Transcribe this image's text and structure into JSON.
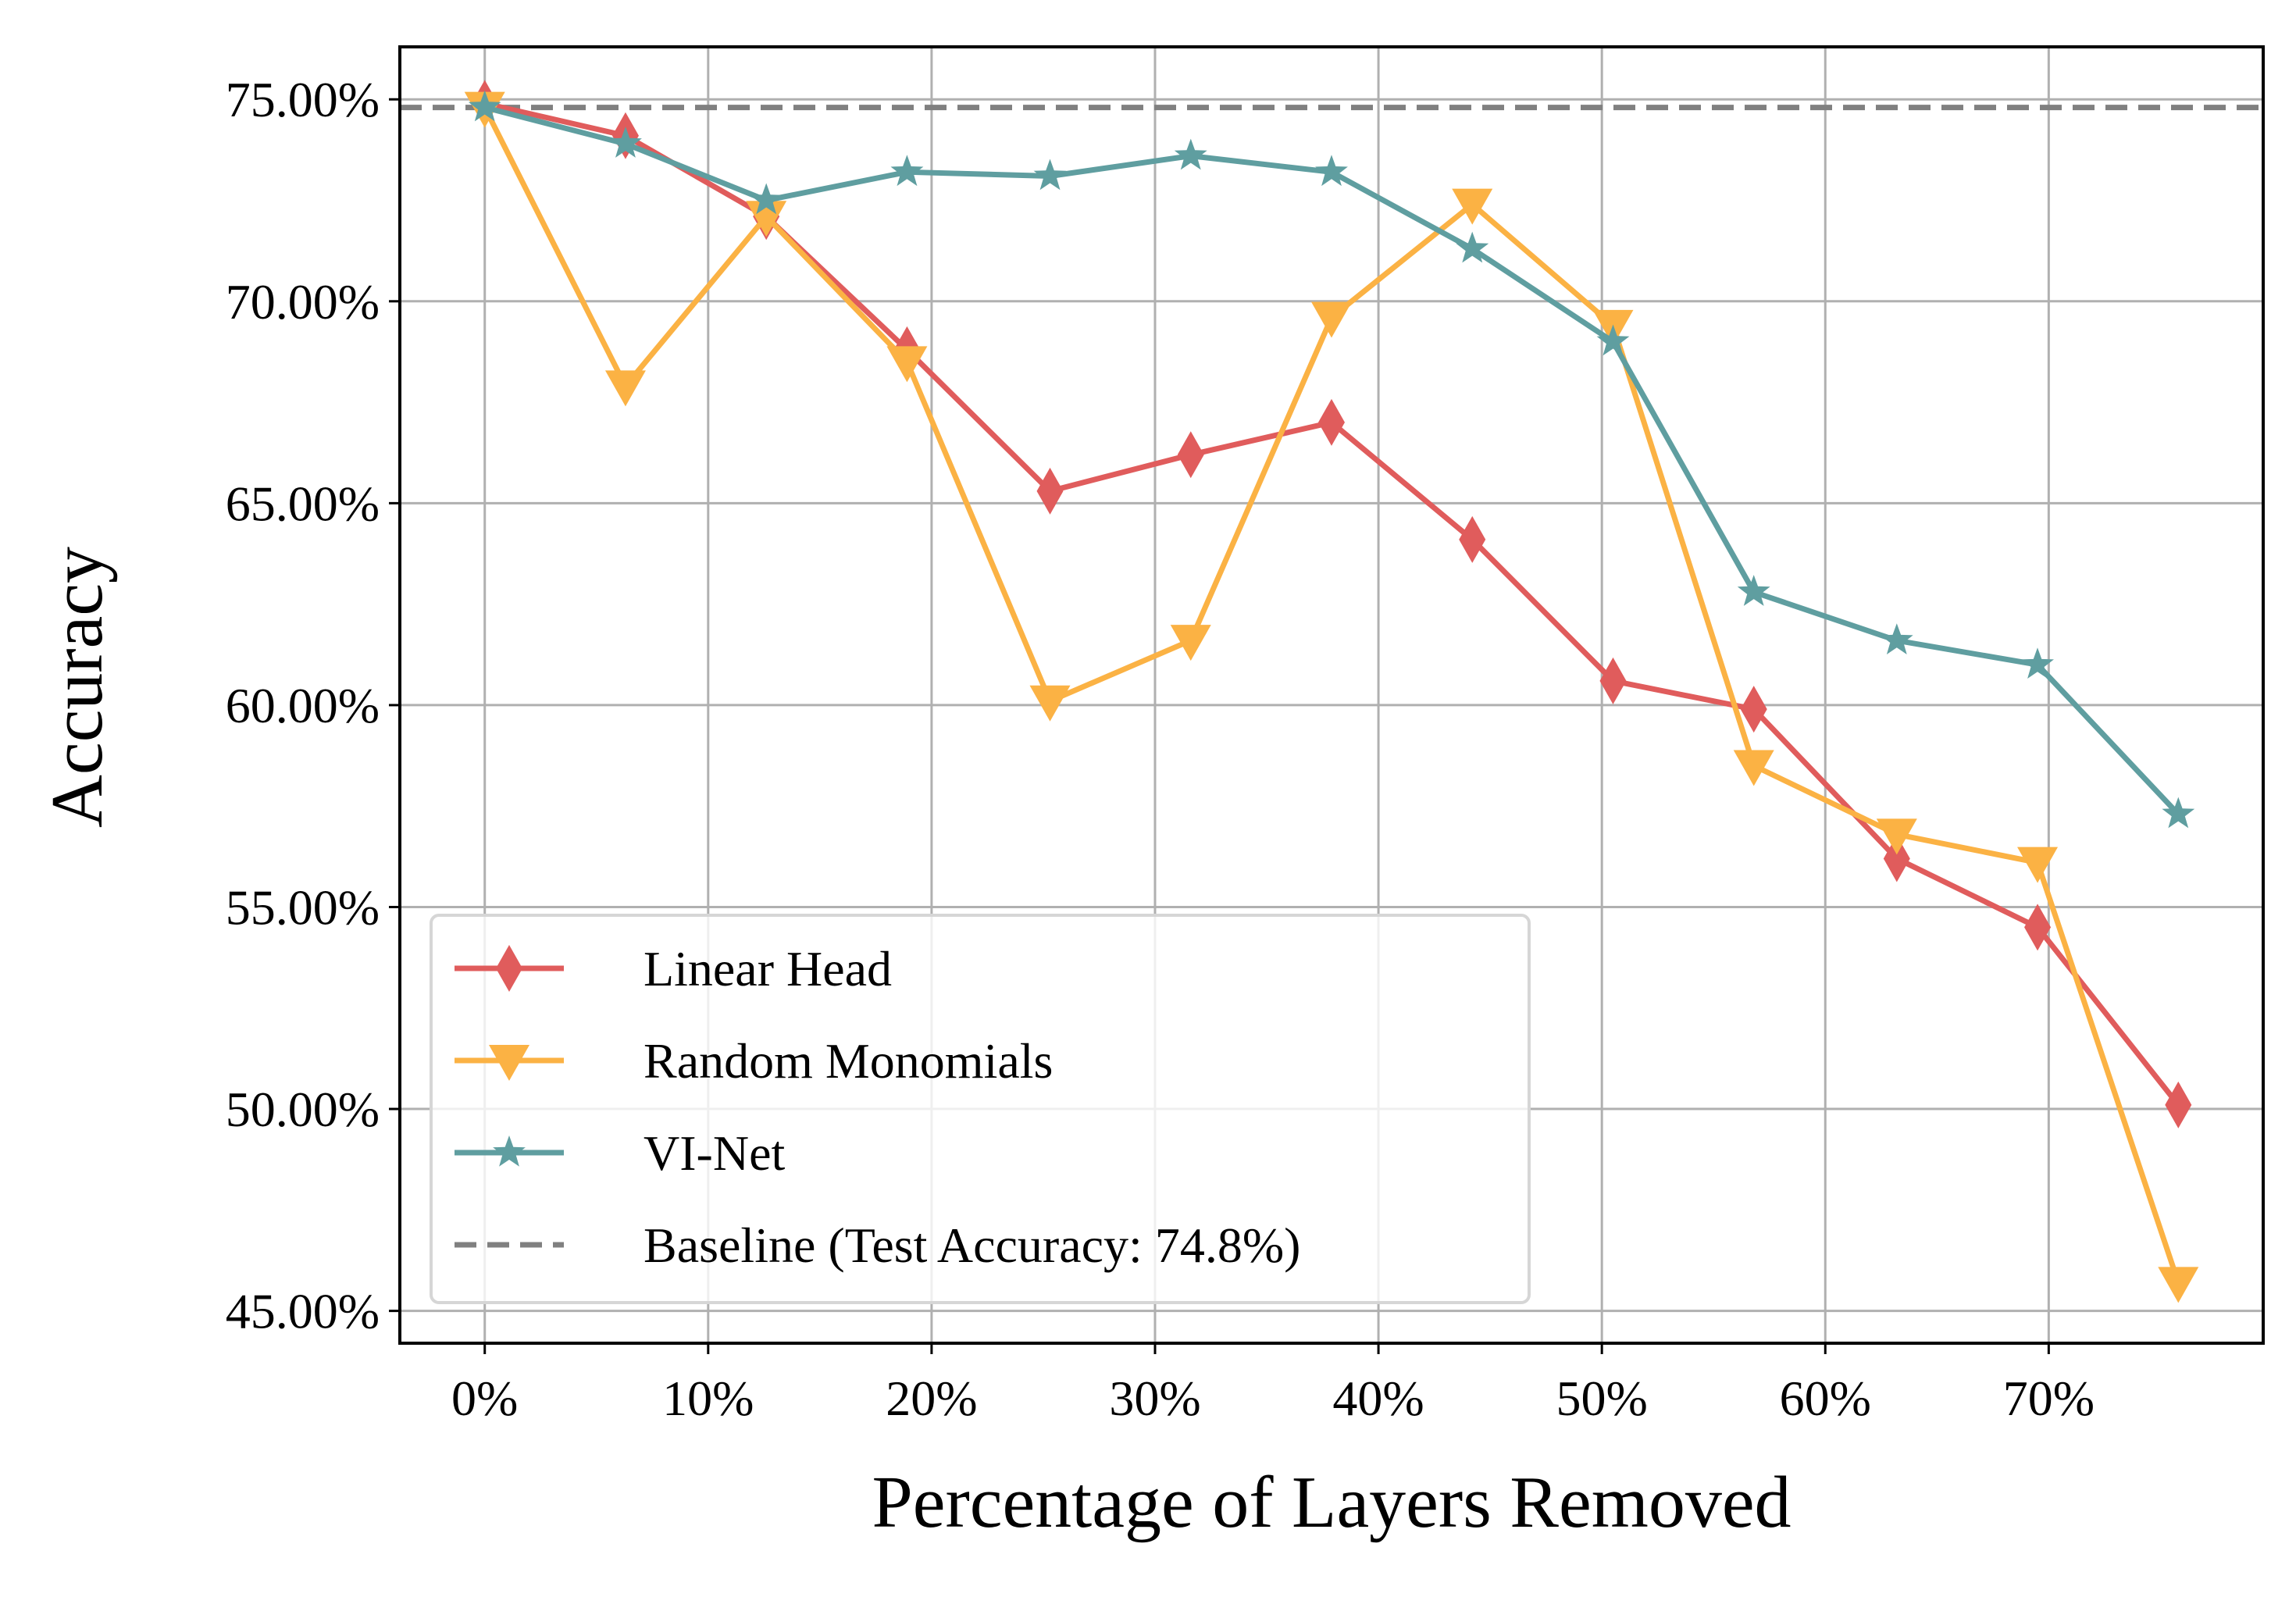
{
  "chart_data": {
    "type": "line",
    "xlabel": "Percentage of Layers Removed",
    "ylabel": "Accuracy",
    "xlim": [
      -3.8,
      79.6
    ],
    "ylim": [
      44.2,
      76.3
    ],
    "x_ticks": [
      0,
      10,
      20,
      30,
      40,
      50,
      60,
      70
    ],
    "x_tick_labels": [
      "0%",
      "10%",
      "20%",
      "30%",
      "40%",
      "50%",
      "60%",
      "70%"
    ],
    "y_ticks": [
      45,
      50,
      55,
      60,
      65,
      70,
      75
    ],
    "y_tick_labels": [
      "45.00%",
      "50.00%",
      "55.00%",
      "60.00%",
      "65.00%",
      "70.00%",
      "75.00%"
    ],
    "grid": true,
    "legend_position": "lower-left",
    "x": [
      0,
      6.3,
      12.6,
      18.9,
      25.3,
      31.6,
      37.9,
      44.2,
      50.5,
      56.8,
      63.2,
      69.5,
      75.8
    ],
    "series": [
      {
        "name": "Linear Head",
        "color": "#e05c5c",
        "marker": "diamond",
        "values": [
          74.9,
          74.1,
          72.1,
          68.8,
          65.3,
          66.2,
          67.0,
          64.1,
          60.6,
          59.9,
          56.2,
          54.5,
          50.1
        ]
      },
      {
        "name": "Random Monomials",
        "color": "#fbb244",
        "marker": "triangle-down",
        "values": [
          74.8,
          67.9,
          72.1,
          68.5,
          60.1,
          61.6,
          69.6,
          72.4,
          69.4,
          58.5,
          56.8,
          56.1,
          45.7
        ]
      },
      {
        "name": "VI-Net",
        "color": "#5f9ea0",
        "marker": "star",
        "values": [
          74.8,
          73.9,
          72.5,
          73.2,
          73.1,
          73.6,
          73.2,
          71.3,
          69.0,
          62.8,
          61.6,
          61.0,
          57.3
        ]
      }
    ],
    "baseline": {
      "name": "Baseline (Test Accuracy: 74.8%)",
      "value": 74.8,
      "color": "#808080",
      "style": "dashed"
    }
  }
}
